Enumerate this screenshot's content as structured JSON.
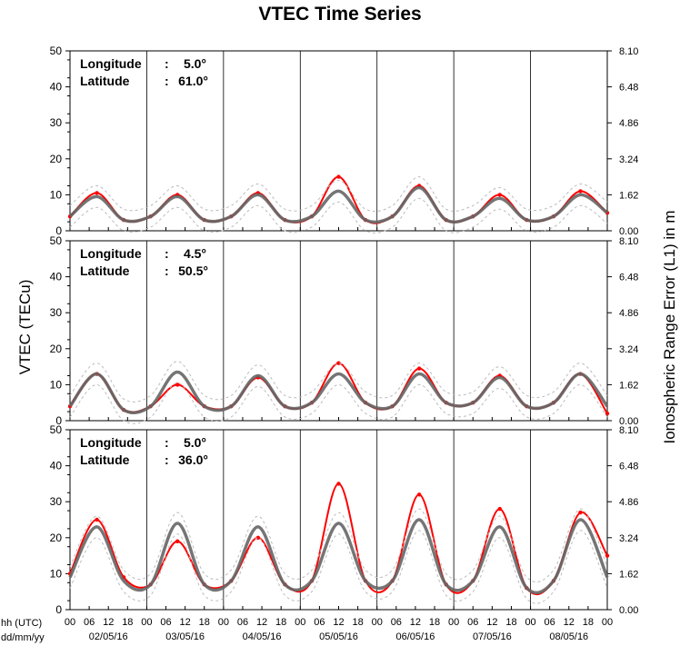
{
  "figure": {
    "title": "VTEC Time Series",
    "ylabel_left": "VTEC (TECu)",
    "ylabel_right": "Ionospheric Range Error (L1) in m",
    "x_header_time": "hh (UTC)",
    "x_header_date": "dd/mm/yy"
  },
  "chart_data": [
    {
      "type": "line",
      "panel": "top",
      "labels": {
        "lon_label": "Longitude",
        "lon_value": "5.0°",
        "lat_label": "Latitude",
        "lat_value": "61.0°"
      },
      "ylim": [
        0,
        50
      ],
      "y_ticks": [
        "0",
        "10",
        "20",
        "30",
        "40",
        "50"
      ],
      "right_ticks": [
        "0.00",
        "1.62",
        "3.24",
        "4.86",
        "6.48",
        "8.10"
      ],
      "x_day_labels": [
        "02/05/16",
        "03/05/16",
        "04/05/16",
        "05/05/16",
        "06/05/16",
        "07/05/16",
        "08/05/16"
      ],
      "x_hour_labels": [
        "00",
        "06",
        "12",
        "18"
      ],
      "x_end_label": "00",
      "grid": false,
      "series": [
        {
          "name": "",
          "color": "#ff0000",
          "values": [
            4,
            10.5,
            3,
            4,
            10,
            3,
            4,
            10.5,
            3,
            4,
            15,
            3,
            4,
            12.5,
            3,
            4,
            10,
            3,
            4,
            11,
            5
          ]
        },
        {
          "name": "",
          "color": "#666666",
          "values": [
            4,
            9.5,
            3,
            4,
            9.5,
            3,
            4,
            10,
            3,
            4,
            11,
            3,
            4,
            12,
            3,
            4,
            9,
            3,
            4,
            10,
            5
          ]
        }
      ]
    },
    {
      "type": "line",
      "panel": "middle",
      "labels": {
        "lon_label": "Longitude",
        "lon_value": "4.5°",
        "lat_label": "Latitude",
        "lat_value": "50.5°"
      },
      "ylim": [
        0,
        50
      ],
      "y_ticks": [
        "0",
        "10",
        "20",
        "30",
        "40",
        "50"
      ],
      "right_ticks": [
        "0.00",
        "1.62",
        "3.24",
        "4.86",
        "6.48",
        "8.10"
      ],
      "x_day_labels": [
        "02/05/16",
        "03/05/16",
        "04/05/16",
        "05/05/16",
        "06/05/16",
        "07/05/16",
        "08/05/16"
      ],
      "x_hour_labels": [
        "00",
        "06",
        "12",
        "18"
      ],
      "x_end_label": "00",
      "grid": false,
      "series": [
        {
          "name": "",
          "color": "#ff0000",
          "values": [
            4,
            13,
            3,
            4,
            10,
            4,
            4,
            12,
            4,
            5,
            16,
            5,
            4,
            14.5,
            5,
            5,
            12.5,
            4,
            5,
            13,
            2
          ]
        },
        {
          "name": "",
          "color": "#666666",
          "values": [
            4,
            13,
            3,
            4,
            13.5,
            4,
            4,
            12.5,
            4,
            5,
            13,
            5,
            4,
            13,
            5,
            5,
            12,
            4,
            5,
            13,
            4
          ]
        }
      ]
    },
    {
      "type": "line",
      "panel": "bottom",
      "labels": {
        "lon_label": "Longitude",
        "lon_value": "5.0°",
        "lat_label": "Latitude",
        "lat_value": "36.0°"
      },
      "ylim": [
        0,
        50
      ],
      "y_ticks": [
        "0",
        "10",
        "20",
        "30",
        "40",
        "50"
      ],
      "right_ticks": [
        "0.00",
        "1.62",
        "3.24",
        "4.86",
        "6.48",
        "8.10"
      ],
      "x_day_labels": [
        "02/05/16",
        "03/05/16",
        "04/05/16",
        "05/05/16",
        "06/05/16",
        "07/05/16",
        "08/05/16"
      ],
      "x_hour_labels": [
        "00",
        "06",
        "12",
        "18"
      ],
      "x_end_label": "00",
      "grid": false,
      "series": [
        {
          "name": "",
          "color": "#ff0000",
          "values": [
            10,
            25,
            9,
            7,
            19,
            7,
            8,
            20,
            7,
            8,
            35,
            8,
            8,
            32,
            7,
            8,
            28,
            6,
            8,
            27,
            15
          ]
        },
        {
          "name": "",
          "color": "#666666",
          "values": [
            9,
            23,
            8,
            7,
            24,
            7,
            8,
            23,
            7,
            8,
            24,
            8,
            8,
            25,
            7,
            8,
            23,
            6,
            8,
            25,
            9
          ]
        }
      ]
    }
  ]
}
